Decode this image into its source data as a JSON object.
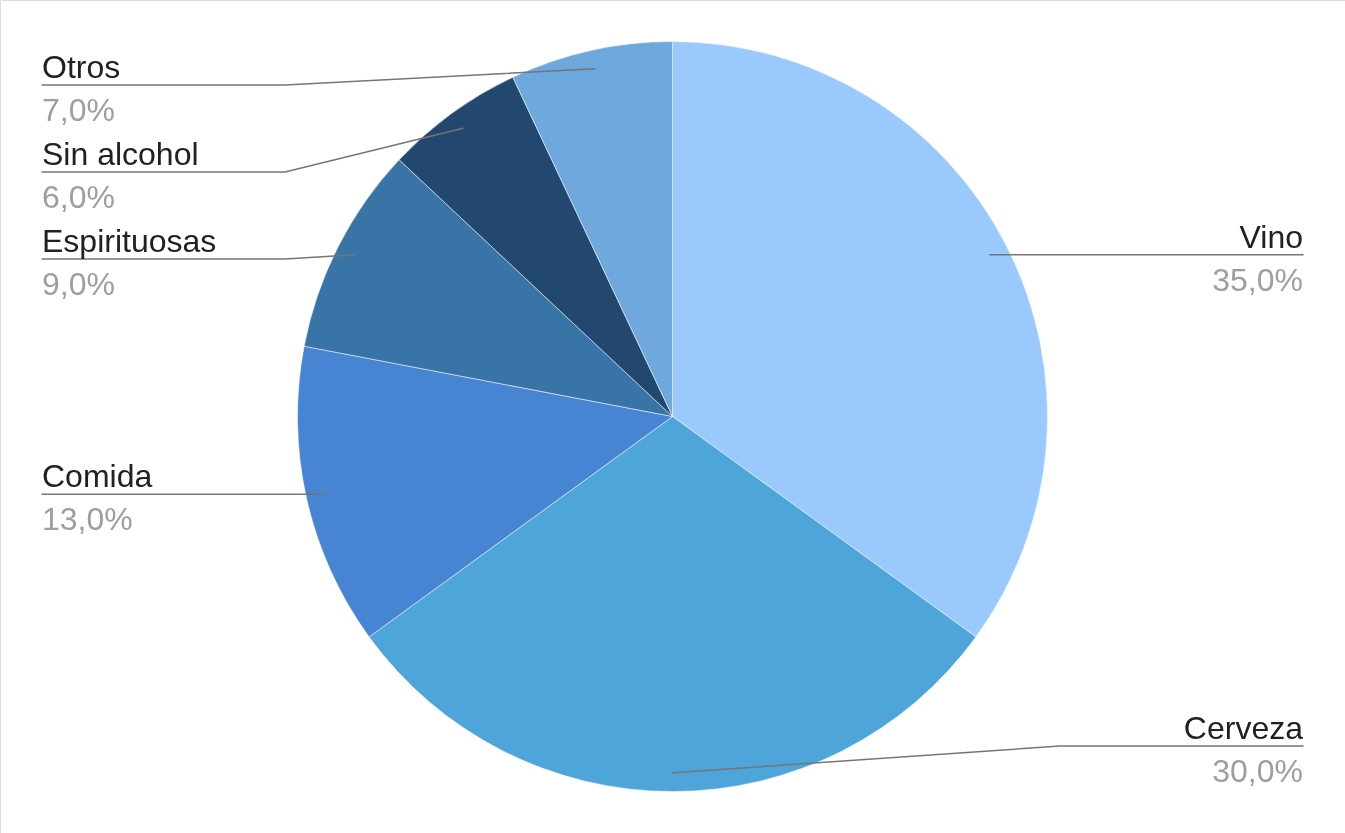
{
  "chart_data": {
    "type": "pie",
    "categories": [
      "Vino",
      "Cerveza",
      "Comida",
      "Espirituosas",
      "Sin alcohol",
      "Otros"
    ],
    "values": [
      35,
      30,
      13,
      9,
      6,
      7
    ],
    "colors": [
      "#9ac9fd",
      "#4ea5d9",
      "#4785d3",
      "#3875a6",
      "#22486f",
      "#6fa8dc"
    ],
    "value_labels": [
      "35,0%",
      "30,0%",
      "13,0%",
      "9,0%",
      "6,0%",
      "7,0%"
    ]
  }
}
